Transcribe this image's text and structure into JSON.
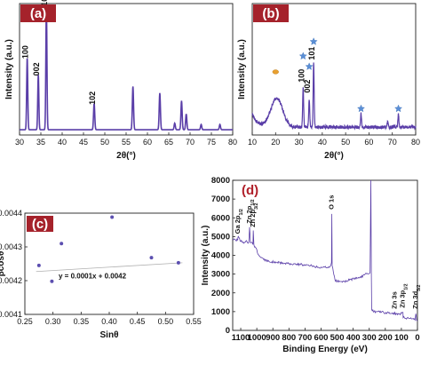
{
  "colors": {
    "line": "#5a3ea8",
    "label_box": "#a5222b",
    "star": "#5b8fd6",
    "marker": "#e8a030",
    "scatter": "#5c4fb0",
    "fit": "#b0b0b0"
  },
  "chart_data": [
    {
      "id": "a",
      "type": "line",
      "panel_label": "(a)",
      "xlabel": "2θ(°)",
      "ylabel": "Intensity (a.u.)",
      "xlim": [
        30,
        80
      ],
      "ylim": [
        0,
        1
      ],
      "xticks": [
        30,
        35,
        40,
        45,
        50,
        55,
        60,
        65,
        70,
        75,
        80
      ],
      "show_yticks": false,
      "baseline": 0.04,
      "peaks": [
        {
          "x": 31.8,
          "y": 0.55,
          "w": 0.18
        },
        {
          "x": 34.4,
          "y": 0.42,
          "w": 0.18
        },
        {
          "x": 36.3,
          "y": 0.95,
          "w": 0.18
        },
        {
          "x": 47.5,
          "y": 0.2,
          "w": 0.2
        },
        {
          "x": 56.6,
          "y": 0.33,
          "w": 0.2
        },
        {
          "x": 62.9,
          "y": 0.28,
          "w": 0.2
        },
        {
          "x": 66.4,
          "y": 0.05,
          "w": 0.2
        },
        {
          "x": 68.0,
          "y": 0.22,
          "w": 0.2
        },
        {
          "x": 69.1,
          "y": 0.12,
          "w": 0.2
        },
        {
          "x": 72.6,
          "y": 0.04,
          "w": 0.2
        },
        {
          "x": 77.0,
          "y": 0.04,
          "w": 0.2
        }
      ],
      "peak_labels": [
        {
          "text": "100",
          "x": 31.8,
          "y": 0.56
        },
        {
          "text": "002",
          "x": 34.4,
          "y": 0.43
        },
        {
          "text": "101",
          "x": 36.3,
          "y": 0.96
        },
        {
          "text": "102",
          "x": 47.5,
          "y": 0.21
        }
      ]
    },
    {
      "id": "b",
      "type": "line",
      "panel_label": "(b)",
      "xlabel": "2θ(°)",
      "ylabel": "Intensity (a.u.)",
      "xlim": [
        10,
        80
      ],
      "ylim": [
        0,
        1
      ],
      "xticks": [
        10,
        20,
        30,
        40,
        50,
        60,
        70,
        80
      ],
      "show_yticks": false,
      "peaks": [
        {
          "x": 31.8,
          "y": 0.3,
          "w": 0.3
        },
        {
          "x": 34.4,
          "y": 0.22,
          "w": 0.3
        },
        {
          "x": 36.3,
          "y": 0.48,
          "w": 0.3
        },
        {
          "x": 56.6,
          "y": 0.1,
          "w": 0.3
        },
        {
          "x": 68.0,
          "y": 0.04,
          "w": 0.3
        },
        {
          "x": 72.6,
          "y": 0.1,
          "w": 0.3
        }
      ],
      "peak_labels": [
        {
          "text": "100",
          "x": 31.8,
          "y": 0.38
        },
        {
          "text": "002",
          "x": 34.4,
          "y": 0.3
        },
        {
          "text": "101",
          "x": 36.3,
          "y": 0.55
        }
      ],
      "stars": [
        {
          "x": 31.8,
          "y": 0.6
        },
        {
          "x": 34.4,
          "y": 0.52
        },
        {
          "x": 36.3,
          "y": 0.71
        },
        {
          "x": 56.6,
          "y": 0.2
        },
        {
          "x": 72.6,
          "y": 0.2
        }
      ],
      "markers": [
        {
          "x": 20.0,
          "y": 0.48
        }
      ]
    },
    {
      "id": "c",
      "type": "scatter",
      "panel_label": "(c)",
      "xlabel": "Sinθ",
      "ylabel": "βcosθ",
      "xlim": [
        0.25,
        0.55
      ],
      "ylim": [
        0.0041,
        0.0044
      ],
      "xticks": [
        0.25,
        0.3,
        0.35,
        0.4,
        0.45,
        0.5,
        0.55
      ],
      "yticks": [
        0.0041,
        0.0042,
        0.0043,
        0.0044
      ],
      "points": [
        {
          "x": 0.275,
          "y": 0.004245
        },
        {
          "x": 0.298,
          "y": 0.004198
        },
        {
          "x": 0.315,
          "y": 0.00431
        },
        {
          "x": 0.405,
          "y": 0.004388
        },
        {
          "x": 0.475,
          "y": 0.004268
        },
        {
          "x": 0.523,
          "y": 0.004253
        }
      ],
      "fit": {
        "slope": 0.0001,
        "intercept": 0.0042,
        "x_range": [
          0.27,
          0.53
        ]
      },
      "equation": "y = 0.0001x + 0.0042"
    },
    {
      "id": "d",
      "type": "line",
      "panel_label": "(d)",
      "xlabel": "Binding Energy (eV)",
      "ylabel": "Intensity (a.u.)",
      "xlim": [
        1150,
        0
      ],
      "ylim": [
        0,
        8000
      ],
      "xticks": [
        1100,
        1000,
        900,
        800,
        700,
        600,
        500,
        400,
        300,
        200,
        100,
        0
      ],
      "yticks": [
        0,
        1000,
        2000,
        3000,
        4000,
        5000,
        6000,
        7000,
        8000
      ],
      "curve": [
        [
          1150,
          4850
        ],
        [
          1120,
          4800
        ],
        [
          1118,
          4900
        ],
        [
          1115,
          4950
        ],
        [
          1100,
          4750
        ],
        [
          1080,
          4700
        ],
        [
          1060,
          4750
        ],
        [
          1050,
          4650
        ],
        [
          1045,
          5500
        ],
        [
          1040,
          4700
        ],
        [
          1024,
          4600
        ],
        [
          1022,
          5300
        ],
        [
          1018,
          4550
        ],
        [
          1000,
          4300
        ],
        [
          990,
          4000
        ],
        [
          970,
          3850
        ],
        [
          950,
          3750
        ],
        [
          900,
          3650
        ],
        [
          800,
          3550
        ],
        [
          700,
          3500
        ],
        [
          600,
          3350
        ],
        [
          545,
          3350
        ],
        [
          535,
          3600
        ],
        [
          533,
          6200
        ],
        [
          531,
          3500
        ],
        [
          520,
          2900
        ],
        [
          510,
          2650
        ],
        [
          490,
          2620
        ],
        [
          470,
          2600
        ],
        [
          450,
          2600
        ],
        [
          420,
          2700
        ],
        [
          390,
          2750
        ],
        [
          350,
          2850
        ],
        [
          320,
          3000
        ],
        [
          300,
          3000
        ],
        [
          295,
          3100
        ],
        [
          290,
          8000
        ],
        [
          287,
          3100
        ],
        [
          285,
          1100
        ],
        [
          270,
          1000
        ],
        [
          200,
          950
        ],
        [
          140,
          900
        ],
        [
          110,
          850
        ],
        [
          90,
          950
        ],
        [
          89,
          700
        ],
        [
          60,
          650
        ],
        [
          30,
          600
        ],
        [
          15,
          550
        ],
        [
          10,
          900
        ],
        [
          5,
          550
        ],
        [
          0,
          500
        ]
      ],
      "annotations": [
        {
          "text": "Ga 2p1/2",
          "x": 1118,
          "y": 5050
        },
        {
          "text": "Zn 2p1/2",
          "x": 1045,
          "y": 5600
        },
        {
          "text": "Zn 2p3/2",
          "x": 1022,
          "y": 5400
        },
        {
          "text": "O 1s",
          "x": 533,
          "y": 6350
        },
        {
          "text": "Zn 3s",
          "x": 140,
          "y": 1050
        },
        {
          "text": "Zn 3p1/2",
          "x": 90,
          "y": 1100
        },
        {
          "text": "Zn 3d5/2",
          "x": 10,
          "y": 1050
        }
      ]
    }
  ]
}
